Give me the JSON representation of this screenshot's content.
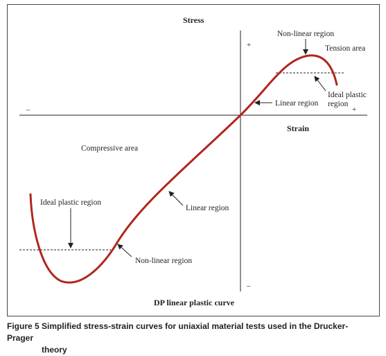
{
  "figure": {
    "title_top": "Stress",
    "axis_x_label": "Strain",
    "bottom_title": "DP linear plastic curve",
    "plus_top": "+",
    "minus_bottom": "–",
    "minus_left": "–",
    "plus_right": "+",
    "labels": {
      "nonlinear_top": "Non-linear region",
      "tension_area": "Tension area",
      "ideal_plastic_top_1": "Ideal plastic",
      "ideal_plastic_top_2": "region",
      "linear_top": "Linear region",
      "compressive_area": "Compressive area",
      "ideal_plastic_bottom": "Ideal plastic region",
      "linear_bottom": "Linear region",
      "nonlinear_bottom": "Non-linear region"
    },
    "colors": {
      "curve": "#b0261f",
      "axes": "#222222",
      "text": "#222222"
    }
  },
  "caption": {
    "label": "Figure 5",
    "text": "Simplified stress-strain curves for uniaxial material tests used in the Drucker-Prager",
    "continuation": "theory"
  }
}
